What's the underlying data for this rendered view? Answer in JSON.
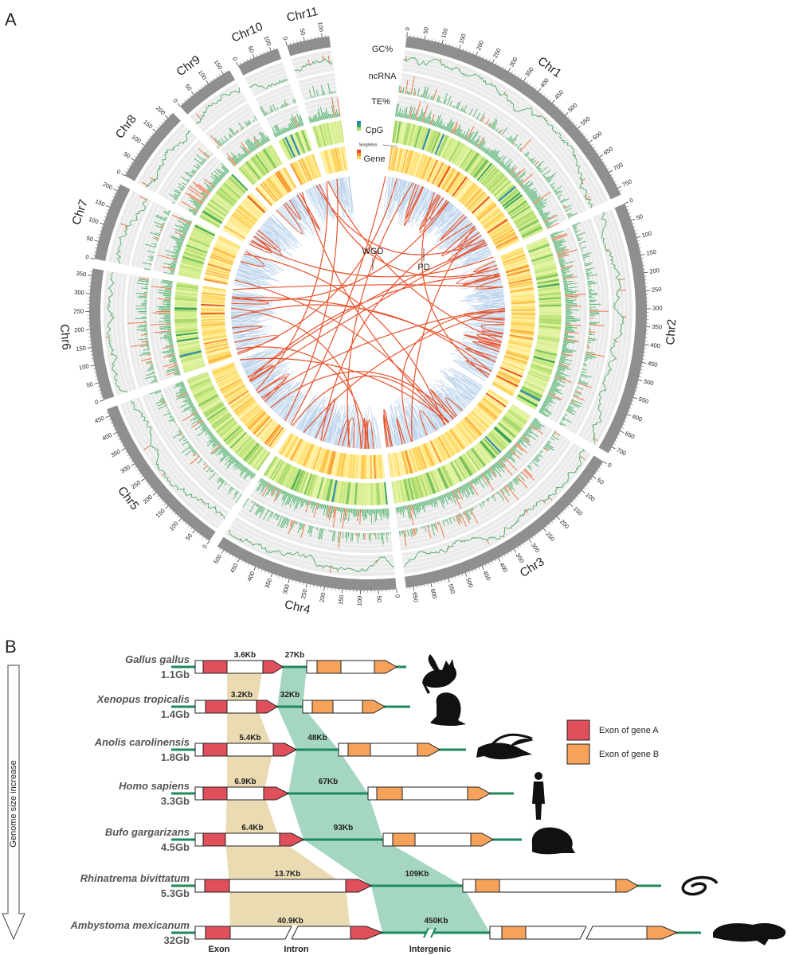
{
  "panel_a": {
    "label": "A",
    "chromosomes": [
      {
        "name": "Chr1",
        "ticks": [
          0,
          50,
          100,
          150,
          200,
          250,
          300,
          350,
          400,
          450,
          500,
          550,
          600,
          650,
          700,
          750
        ]
      },
      {
        "name": "Chr2",
        "ticks": [
          0,
          50,
          100,
          150,
          200,
          250,
          300,
          350,
          400,
          450,
          500,
          550,
          600,
          650,
          700
        ]
      },
      {
        "name": "Chr3",
        "ticks": [
          0,
          50,
          100,
          150,
          200,
          250,
          300,
          350,
          400,
          450,
          500,
          550,
          600,
          650
        ]
      },
      {
        "name": "Chr4",
        "ticks": [
          0,
          50,
          100,
          150,
          200,
          250,
          300,
          350,
          400,
          450,
          500
        ]
      },
      {
        "name": "Chr5",
        "ticks": [
          0,
          50,
          100,
          150,
          200,
          250,
          300,
          350,
          400,
          450
        ]
      },
      {
        "name": "Chr6",
        "ticks": [
          0,
          50,
          100,
          150,
          200,
          250,
          300,
          350
        ]
      },
      {
        "name": "Chr7",
        "ticks": [
          0,
          50,
          100,
          150,
          200
        ]
      },
      {
        "name": "Chr8",
        "ticks": [
          0,
          50,
          100,
          150,
          200
        ]
      },
      {
        "name": "Chr9",
        "ticks": [
          0,
          50,
          100,
          150
        ]
      },
      {
        "name": "Chr10",
        "ticks": [
          0,
          50,
          100
        ]
      },
      {
        "name": "Chr11",
        "ticks": [
          0,
          50,
          100
        ]
      }
    ],
    "tracks": [
      "GC%",
      "ncRNA",
      "TE%",
      "CpG",
      "Gene"
    ],
    "singleton": "Singleton",
    "links": [
      "WGD",
      "PD"
    ]
  },
  "panel_b": {
    "label": "B",
    "axis_label": "Genome size increase",
    "species": [
      {
        "name": "Gallus gallus",
        "genome": "1.1Gb",
        "intron": "3.6Kb",
        "intergenic": "27Kb"
      },
      {
        "name": "Xenopus tropicalis",
        "genome": "1.4Gb",
        "intron": "3.2Kb",
        "intergenic": "32Kb"
      },
      {
        "name": "Anolis carolinensis",
        "genome": "1.8Gb",
        "intron": "5.4Kb",
        "intergenic": "48Kb"
      },
      {
        "name": "Homo sapiens",
        "genome": "3.3Gb",
        "intron": "6.9Kb",
        "intergenic": "67Kb"
      },
      {
        "name": "Bufo gargarizans",
        "genome": "4.5Gb",
        "intron": "6.4Kb",
        "intergenic": "93Kb"
      },
      {
        "name": "Rhinatrema bivittatum",
        "genome": "5.3Gb",
        "intron": "13.7Kb",
        "intergenic": "109Kb"
      },
      {
        "name": "Ambystoma mexicanum",
        "genome": "32Gb",
        "intron": "40.9Kb",
        "intergenic": "450Kb"
      }
    ],
    "legend": [
      "Exon of gene A",
      "Exon of gene B"
    ],
    "parts": [
      "Exon",
      "Intron",
      "Intergenic"
    ]
  }
}
